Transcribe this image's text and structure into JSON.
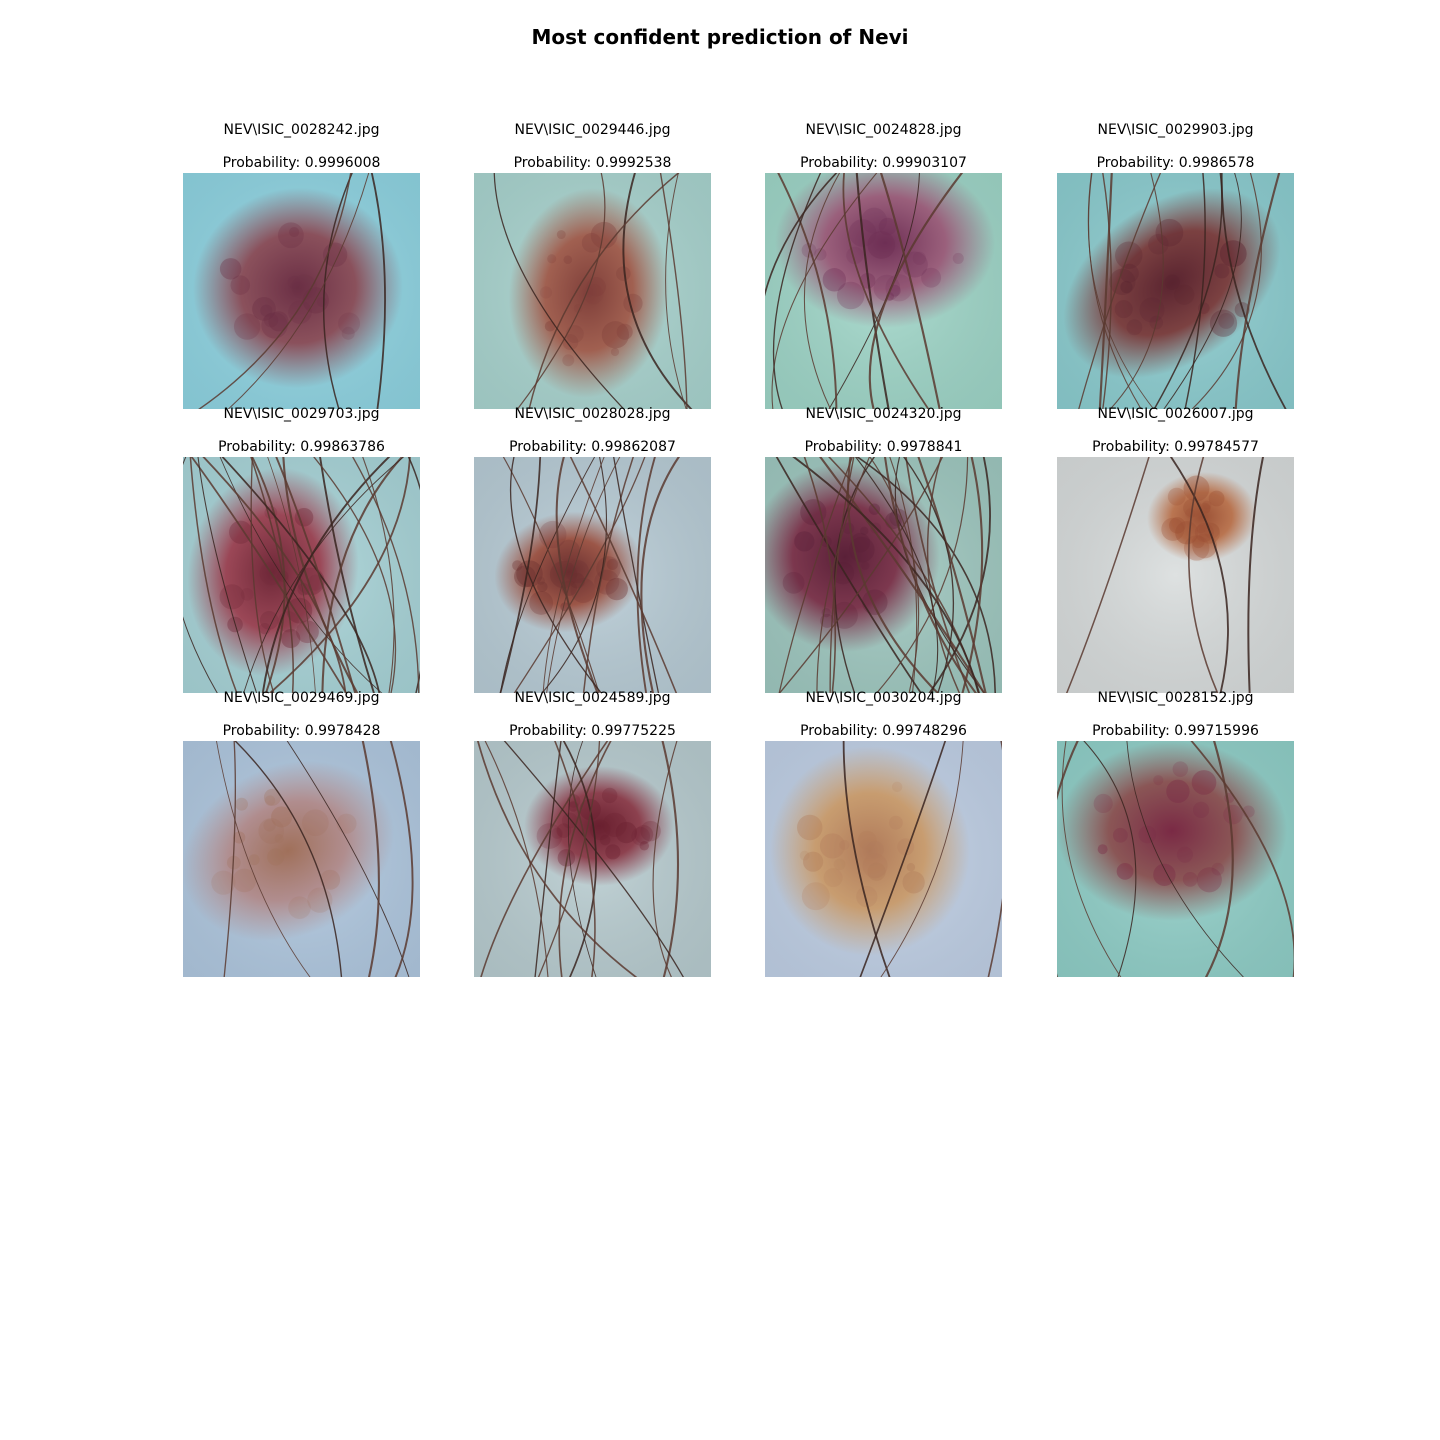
{
  "figure": {
    "title": "Most confident prediction of Nevi"
  },
  "panels": [
    {
      "filename": "NEV\\ISIC_0028242.jpg",
      "probability": "Probability: 0.9996008",
      "colors": {
        "skin": "#8fd4e2",
        "lesion": "#8a4a55",
        "core": "#6b2f45"
      }
    },
    {
      "filename": "NEV\\ISIC_0029446.jpg",
      "probability": "Probability: 0.9992538",
      "colors": {
        "skin": "#a9d4cf",
        "lesion": "#a05a4a",
        "core": "#7f3f3a"
      }
    },
    {
      "filename": "NEV\\ISIC_0024828.jpg",
      "probability": "Probability: 0.99903107",
      "colors": {
        "skin": "#9fd6c8",
        "lesion": "#9a5a78",
        "core": "#6e2f55"
      }
    },
    {
      "filename": "NEV\\ISIC_0029903.jpg",
      "probability": "Probability: 0.9986578",
      "colors": {
        "skin": "#8ccdd0",
        "lesion": "#7a3a3a",
        "core": "#5a2430"
      }
    },
    {
      "filename": "NEV\\ISIC_0029703.jpg",
      "probability": "Probability: 0.99863786",
      "colors": {
        "skin": "#a8d4d8",
        "lesion": "#9a4050",
        "core": "#6e2838"
      }
    },
    {
      "filename": "NEV\\ISIC_0028028.jpg",
      "probability": "Probability: 0.99862087",
      "colors": {
        "skin": "#b8ccd6",
        "lesion": "#9a5040",
        "core": "#6a2f30"
      }
    },
    {
      "filename": "NEV\\ISIC_0024320.jpg",
      "probability": "Probability: 0.9978841",
      "colors": {
        "skin": "#9fc8c0",
        "lesion": "#7a3048",
        "core": "#5a2038"
      }
    },
    {
      "filename": "NEV\\ISIC_0026007.jpg",
      "probability": "Probability: 0.99784577",
      "colors": {
        "skin": "#d8dcdc",
        "lesion": "#b8704a",
        "core": "#9a5035"
      }
    },
    {
      "filename": "NEV\\ISIC_0029469.jpg",
      "probability": "Probability: 0.9978428",
      "colors": {
        "skin": "#b0c8e0",
        "lesion": "#b08a8a",
        "core": "#a0705a"
      }
    },
    {
      "filename": "NEV\\ISIC_0024589.jpg",
      "probability": "Probability: 0.99775225",
      "colors": {
        "skin": "#b8ccd0",
        "lesion": "#8a3a48",
        "core": "#6a2030"
      }
    },
    {
      "filename": "NEV\\ISIC_0030204.jpg",
      "probability": "Probability: 0.99748296",
      "colors": {
        "skin": "#c0d0e6",
        "lesion": "#c89a6a",
        "core": "#b07a5a"
      }
    },
    {
      "filename": "NEV\\ISIC_0028152.jpg",
      "probability": "Probability: 0.99715996",
      "colors": {
        "skin": "#90cfc8",
        "lesion": "#8a5050",
        "core": "#7a2a45"
      }
    }
  ]
}
